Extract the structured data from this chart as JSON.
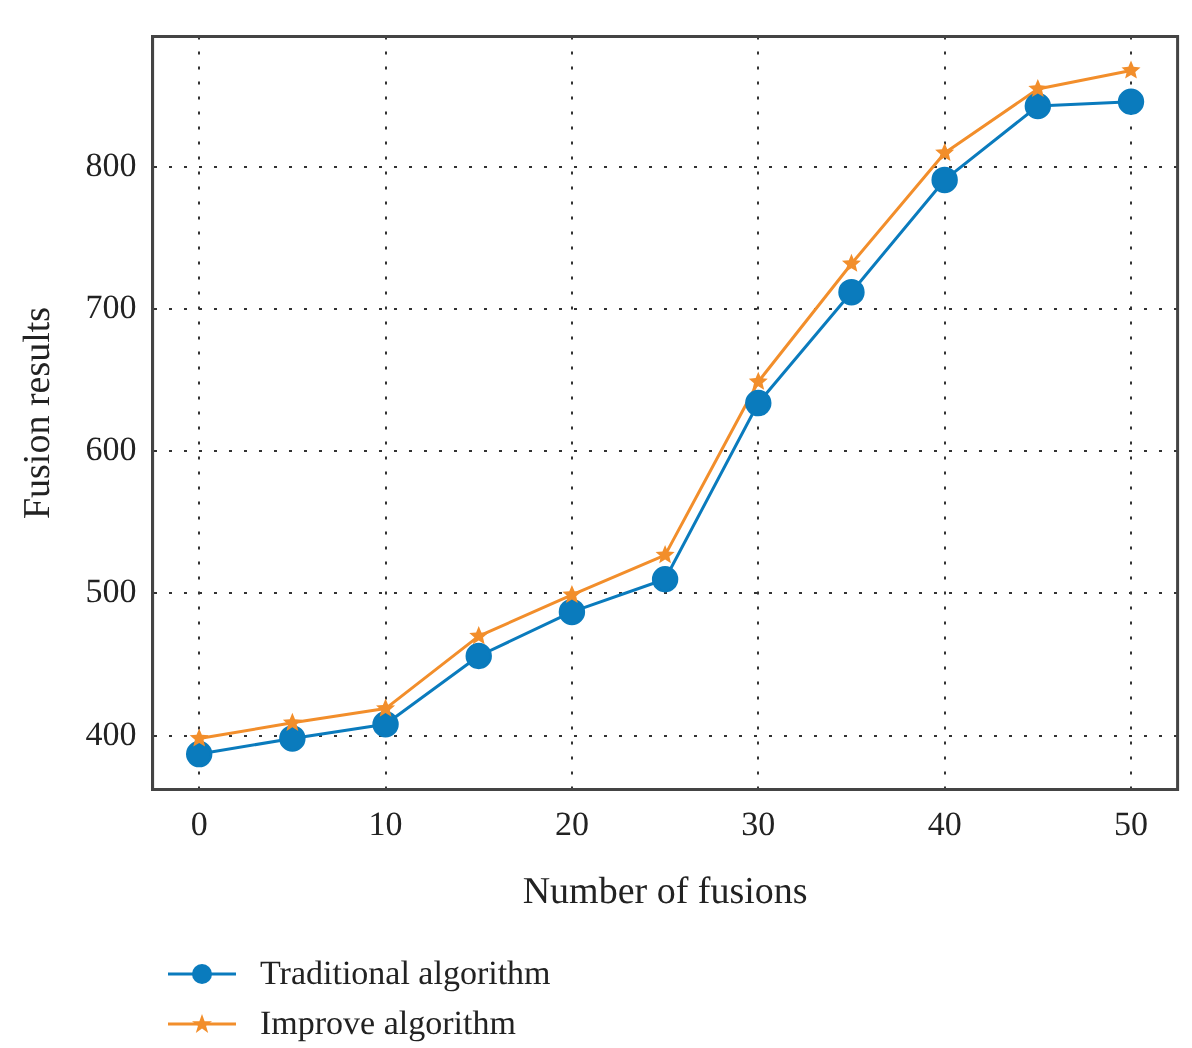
{
  "chart_data": {
    "type": "line",
    "xlabel": "Number of fusions",
    "ylabel": "Fusion results",
    "x": [
      0,
      5,
      10,
      15,
      20,
      25,
      30,
      35,
      40,
      45,
      50
    ],
    "series": [
      {
        "name": "Traditional algorithm",
        "color": "#0a7bbd",
        "marker": "circle",
        "values": [
          387,
          398,
          408,
          456,
          487,
          510,
          634,
          712,
          791,
          843,
          846
        ]
      },
      {
        "name": "Improve algorithm",
        "color": "#f28e2b",
        "marker": "star",
        "values": [
          398,
          409,
          419,
          470,
          499,
          527,
          649,
          732,
          810,
          855,
          868
        ]
      }
    ],
    "xlim": [
      -2.5,
      52.5
    ],
    "xticks": [
      0,
      10,
      20,
      30,
      40,
      50
    ],
    "ylim": [
      362,
      892
    ],
    "yticks": [
      400,
      500,
      600,
      700,
      800
    ],
    "grid": true,
    "legend": "bottom",
    "line_style": "solid"
  }
}
